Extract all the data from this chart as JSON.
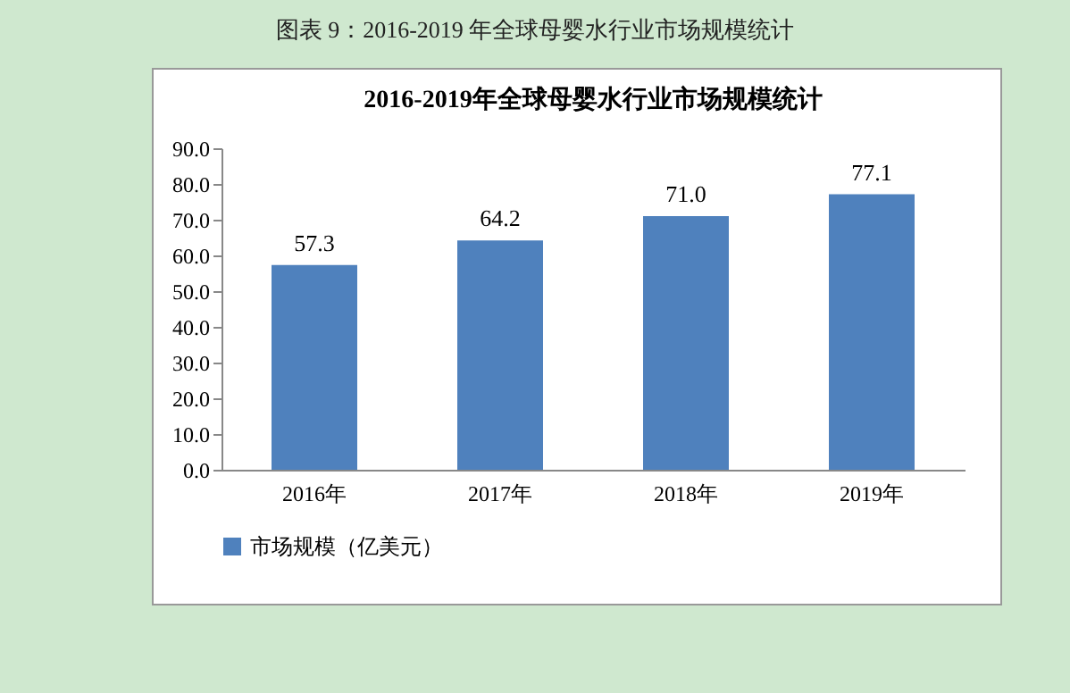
{
  "chart_data": {
    "type": "bar",
    "title": "2016-2019年全球母婴水行业市场规模统计",
    "annotations": [
      "图表 9：2016-2019 年全球母婴水行业市场规模统计"
    ],
    "categories": [
      "2016年",
      "2017年",
      "2018年",
      "2019年"
    ],
    "series": [
      {
        "name": "市场规模（亿美元）",
        "color": "#4f81bd",
        "values": [
          57.3,
          64.2,
          71.0,
          77.1
        ],
        "value_labels": [
          "57.3",
          "64.2",
          "71.0",
          "77.1"
        ]
      }
    ],
    "ylim": [
      0,
      90
    ],
    "yticks": [
      {
        "value": 0,
        "label": "0.0"
      },
      {
        "value": 10,
        "label": "10.0"
      },
      {
        "value": 20,
        "label": "20.0"
      },
      {
        "value": 30,
        "label": "30.0"
      },
      {
        "value": 40,
        "label": "40.0"
      },
      {
        "value": 50,
        "label": "50.0"
      },
      {
        "value": 60,
        "label": "60.0"
      },
      {
        "value": 70,
        "label": "70.0"
      },
      {
        "value": 80,
        "label": "80.0"
      },
      {
        "value": 90,
        "label": "90.0"
      }
    ],
    "legend": "bottom"
  }
}
